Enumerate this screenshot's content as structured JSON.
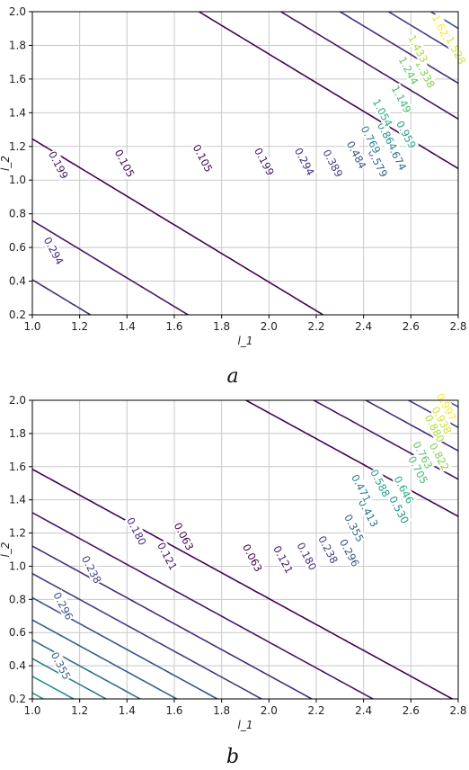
{
  "chart_data": [
    {
      "type": "contour",
      "caption": "a",
      "xlabel": "l_1",
      "ylabel": "l_2",
      "xlim": [
        1.0,
        2.8
      ],
      "ylim": [
        0.2,
        2.0
      ],
      "xticks": [
        "1.0",
        "1.2",
        "1.4",
        "1.6",
        "1.8",
        "2.0",
        "2.2",
        "2.4",
        "2.6",
        "2.8"
      ],
      "yticks": [
        "0.2",
        "0.4",
        "0.6",
        "0.8",
        "1.0",
        "1.2",
        "1.4",
        "1.6",
        "1.8",
        "2.0"
      ],
      "grid": true,
      "colormap": "viridis",
      "levels": [
        0.105,
        0.199,
        0.294,
        0.389,
        0.484,
        0.579,
        0.674,
        0.769,
        0.864,
        0.959,
        1.054,
        1.149,
        1.244,
        1.338,
        1.433,
        1.528,
        1.623
      ],
      "contour_labels": [
        {
          "text": "0.294",
          "x": 1.09,
          "y": 0.58
        },
        {
          "text": "0.199",
          "x": 1.11,
          "y": 1.09
        },
        {
          "text": "0.105",
          "x": 1.39,
          "y": 1.1
        },
        {
          "text": "0.105",
          "x": 1.72,
          "y": 1.13
        },
        {
          "text": "0.199",
          "x": 1.98,
          "y": 1.11
        },
        {
          "text": "0.294",
          "x": 2.15,
          "y": 1.11
        },
        {
          "text": "0.389",
          "x": 2.27,
          "y": 1.1
        },
        {
          "text": "0.484",
          "x": 2.37,
          "y": 1.15
        },
        {
          "text": "0.579",
          "x": 2.46,
          "y": 1.1
        },
        {
          "text": "0.674",
          "x": 2.54,
          "y": 1.14
        },
        {
          "text": "0.769",
          "x": 2.43,
          "y": 1.24
        },
        {
          "text": "0.864",
          "x": 2.5,
          "y": 1.26
        },
        {
          "text": "0.959",
          "x": 2.58,
          "y": 1.27
        },
        {
          "text": "1.054",
          "x": 2.48,
          "y": 1.4
        },
        {
          "text": "1.149",
          "x": 2.56,
          "y": 1.48
        },
        {
          "text": "1.244",
          "x": 2.59,
          "y": 1.65
        },
        {
          "text": "1.338",
          "x": 2.66,
          "y": 1.63
        },
        {
          "text": "1.433",
          "x": 2.63,
          "y": 1.78
        },
        {
          "text": "1.623",
          "x": 2.73,
          "y": 1.9
        },
        {
          "text": "1.528",
          "x": 2.79,
          "y": 1.77
        }
      ]
    },
    {
      "type": "contour",
      "caption": "b",
      "xlabel": "l_1",
      "ylabel": "l_2",
      "xlim": [
        1.0,
        2.8
      ],
      "ylim": [
        0.2,
        2.0
      ],
      "xticks": [
        "1.0",
        "1.2",
        "1.4",
        "1.6",
        "1.8",
        "2.0",
        "2.2",
        "2.4",
        "2.6",
        "2.8"
      ],
      "yticks": [
        "0.2",
        "0.4",
        "0.6",
        "0.8",
        "1.0",
        "1.2",
        "1.4",
        "1.6",
        "1.8",
        "2.0"
      ],
      "grid": true,
      "colormap": "viridis",
      "levels": [
        0.063,
        0.121,
        0.18,
        0.238,
        0.296,
        0.355,
        0.413,
        0.471,
        0.53,
        0.588,
        0.646,
        0.705,
        0.763,
        0.822,
        0.88,
        0.938,
        0.997
      ],
      "contour_labels": [
        {
          "text": "0.355",
          "x": 1.12,
          "y": 0.4
        },
        {
          "text": "0.296",
          "x": 1.13,
          "y": 0.76
        },
        {
          "text": "0.238",
          "x": 1.25,
          "y": 0.98
        },
        {
          "text": "0.180",
          "x": 1.44,
          "y": 1.21
        },
        {
          "text": "0.121",
          "x": 1.57,
          "y": 1.06
        },
        {
          "text": "0.063",
          "x": 1.64,
          "y": 1.18
        },
        {
          "text": "0.063",
          "x": 1.93,
          "y": 1.05
        },
        {
          "text": "0.121",
          "x": 2.06,
          "y": 1.04
        },
        {
          "text": "0.180",
          "x": 2.16,
          "y": 1.06
        },
        {
          "text": "0.238",
          "x": 2.25,
          "y": 1.1
        },
        {
          "text": "0.296",
          "x": 2.34,
          "y": 1.08
        },
        {
          "text": "0.355",
          "x": 2.36,
          "y": 1.23
        },
        {
          "text": "0.413",
          "x": 2.42,
          "y": 1.32
        },
        {
          "text": "0.471",
          "x": 2.39,
          "y": 1.47
        },
        {
          "text": "0.588",
          "x": 2.47,
          "y": 1.5
        },
        {
          "text": "0.646",
          "x": 2.57,
          "y": 1.46
        },
        {
          "text": "0.530",
          "x": 2.55,
          "y": 1.34
        },
        {
          "text": "0.705",
          "x": 2.63,
          "y": 1.58
        },
        {
          "text": "0.763",
          "x": 2.65,
          "y": 1.67
        },
        {
          "text": "0.822",
          "x": 2.72,
          "y": 1.66
        },
        {
          "text": "0.880",
          "x": 2.7,
          "y": 1.83
        },
        {
          "text": "0.938",
          "x": 2.73,
          "y": 1.88
        },
        {
          "text": "0.997",
          "x": 2.75,
          "y": 1.96
        }
      ]
    }
  ]
}
